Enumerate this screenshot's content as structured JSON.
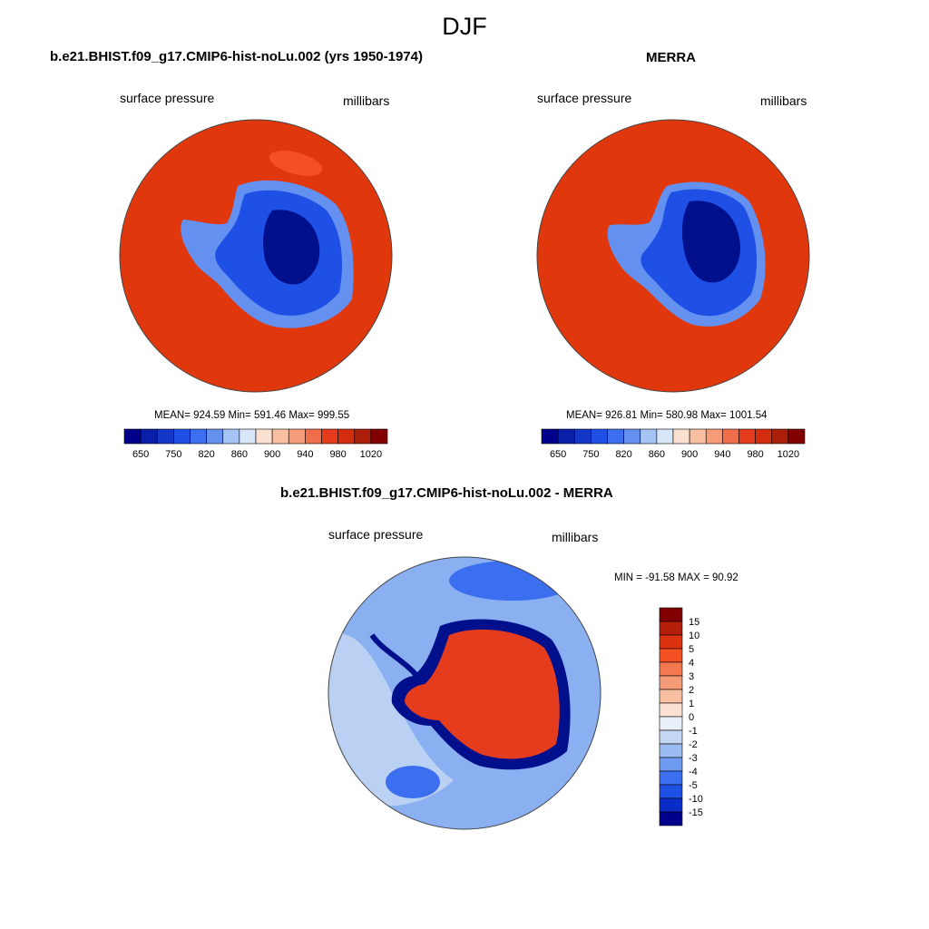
{
  "title": "DJF",
  "panels": [
    {
      "title": "b.e21.BHIST.f09_g17.CMIP6-hist-noLu.002 (yrs 1950-1974)",
      "variable": "surface pressure",
      "units": "millibars",
      "stats": "MEAN= 924.59  Min= 591.46  Max= 999.55"
    },
    {
      "title": "MERRA",
      "variable": "surface pressure",
      "units": "millibars",
      "stats": "MEAN= 926.81  Min= 580.98  Max= 1001.54"
    }
  ],
  "pressure_colorbar": {
    "colors": [
      "#00008b",
      "#0a1fa8",
      "#1437c8",
      "#1e50e6",
      "#3c6ef0",
      "#6491f0",
      "#a5c3f5",
      "#d7e6f8",
      "#fbe1d2",
      "#f8c0a0",
      "#f59b78",
      "#f06e4b",
      "#e63c1e",
      "#d22d0f",
      "#aa1e0a",
      "#820000"
    ],
    "labels": [
      "650",
      "750",
      "820",
      "860",
      "900",
      "940",
      "980",
      "1020"
    ]
  },
  "difference": {
    "title": "b.e21.BHIST.f09_g17.CMIP6-hist-noLu.002 - MERRA",
    "variable": "surface pressure",
    "units": "millibars",
    "stats": "MIN = -91.58 MAX =  90.92",
    "colorbar": {
      "colors": [
        "#820000",
        "#b41e0a",
        "#dc320f",
        "#f55023",
        "#f57850",
        "#f59b78",
        "#f8c0a0",
        "#fbe1d2",
        "#eaf0fa",
        "#c3d7f5",
        "#9bbcf2",
        "#6e9bf0",
        "#3c6ef0",
        "#1e50e6",
        "#0a2dc8",
        "#00008b"
      ],
      "labels": [
        "15",
        "10",
        "5",
        "4",
        "3",
        "2",
        "1",
        "0",
        "-1",
        "-2",
        "-3",
        "-4",
        "-5",
        "-10",
        "-15"
      ]
    }
  },
  "colors": {
    "ocean_high": "#e0380c",
    "ocean_highest": "#f55023",
    "ice_low": "#00108c",
    "ice_mid": "#1e50e6",
    "ice_edge": "#6491f0",
    "diff_base": "#8ab0f2",
    "diff_light": "#c3d7f5",
    "diff_dark": "#3c6ef0",
    "diff_positive": "#e63c1e"
  }
}
